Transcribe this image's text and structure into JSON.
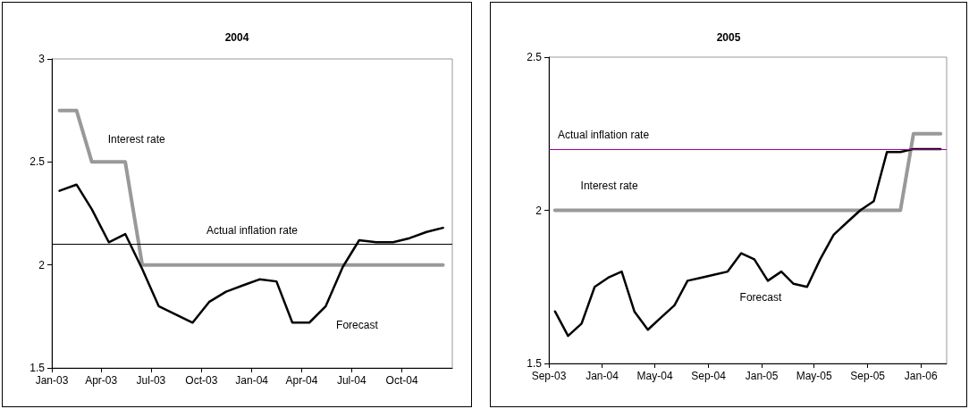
{
  "chart_data": [
    {
      "type": "line",
      "title": "2004",
      "x": [
        "2003-01-15",
        "2003-02-15",
        "2003-03-15",
        "2003-04-15",
        "2003-05-15",
        "2003-06-15",
        "2003-07-15",
        "2003-08-15",
        "2003-09-15",
        "2003-10-15",
        "2003-11-15",
        "2003-12-15",
        "2004-01-15",
        "2004-02-15",
        "2004-03-15",
        "2004-04-15",
        "2004-05-15",
        "2004-06-15",
        "2004-07-15",
        "2004-08-15",
        "2004-09-15",
        "2004-10-15",
        "2004-11-15",
        "2004-12-15"
      ],
      "series": [
        {
          "name": "Interest rate",
          "color": "#999999",
          "values": [
            2.75,
            2.75,
            2.5,
            2.5,
            2.5,
            2,
            2,
            2,
            2,
            2,
            2,
            2,
            2,
            2,
            2,
            2,
            2,
            2,
            2,
            2,
            2,
            2,
            2,
            2
          ]
        },
        {
          "name": "Forecast",
          "color": "#000000",
          "values": [
            2.36,
            2.39,
            2.27,
            2.11,
            2.15,
            1.98,
            1.8,
            1.76,
            1.72,
            1.82,
            1.87,
            1.9,
            1.93,
            1.92,
            1.72,
            1.72,
            1.8,
            1.99,
            2.12,
            2.11,
            2.11,
            2.13,
            2.16,
            2.18
          ]
        }
      ],
      "ref_lines": [
        {
          "axis": "y",
          "value": 2.1,
          "label": "Actual inflation rate",
          "color": "#000000"
        }
      ],
      "xlim": [
        "2003-01",
        "2005-01"
      ],
      "xticks": [
        {
          "value": "2003-01",
          "label": "Jan-03"
        },
        {
          "value": "2003-04",
          "label": "Apr-03"
        },
        {
          "value": "2003-07",
          "label": "Jul-03"
        },
        {
          "value": "2003-10",
          "label": "Oct-03"
        },
        {
          "value": "2004-01",
          "label": "Jan-04"
        },
        {
          "value": "2004-04",
          "label": "Apr-04"
        },
        {
          "value": "2004-07",
          "label": "Jul-04"
        },
        {
          "value": "2004-10",
          "label": "Oct-04"
        }
      ],
      "ylim": [
        1.5,
        3
      ],
      "yticks": [
        1.5,
        2,
        2.5,
        3
      ],
      "grid": false,
      "legend": false,
      "marker": "none",
      "line_style": "solid"
    },
    {
      "type": "line",
      "title": "2005",
      "x": [
        "2003-09-15",
        "2003-10-15",
        "2003-11-15",
        "2003-12-15",
        "2004-01-15",
        "2004-02-15",
        "2004-03-15",
        "2004-04-15",
        "2004-05-15",
        "2004-06-15",
        "2004-07-15",
        "2004-08-15",
        "2004-09-15",
        "2004-10-15",
        "2004-11-15",
        "2004-12-15",
        "2005-01-15",
        "2005-02-15",
        "2005-03-15",
        "2005-04-15",
        "2005-05-15",
        "2005-06-15",
        "2005-07-15",
        "2005-08-15",
        "2005-09-15",
        "2005-10-15",
        "2005-11-15",
        "2005-12-15",
        "2006-01-15",
        "2006-02-15"
      ],
      "series": [
        {
          "name": "Interest rate",
          "color": "#999999",
          "values": [
            2,
            2,
            2,
            2,
            2,
            2,
            2,
            2,
            2,
            2,
            2,
            2,
            2,
            2,
            2,
            2,
            2,
            2,
            2,
            2,
            2,
            2,
            2,
            2,
            2,
            2,
            2,
            2.25,
            2.25,
            2.25
          ]
        },
        {
          "name": "Forecast",
          "color": "#000000",
          "values": [
            1.67,
            1.59,
            1.63,
            1.75,
            1.78,
            1.8,
            1.67,
            1.61,
            1.65,
            1.69,
            1.77,
            1.78,
            1.79,
            1.8,
            1.86,
            1.84,
            1.77,
            1.8,
            1.76,
            1.75,
            1.84,
            1.92,
            1.96,
            2,
            2.03,
            2.19,
            2.19,
            2.2,
            2.2,
            2.2
          ]
        }
      ],
      "ref_lines": [
        {
          "axis": "y",
          "value": 2.2,
          "label": "Actual inflation rate",
          "color": "#990099"
        }
      ],
      "xlim": [
        "2003-09",
        "2006-03"
      ],
      "xticks": [
        {
          "value": "2003-09",
          "label": "Sep-03"
        },
        {
          "value": "2004-01",
          "label": "Jan-04"
        },
        {
          "value": "2004-05",
          "label": "May-04"
        },
        {
          "value": "2004-09",
          "label": "Sep-04"
        },
        {
          "value": "2005-01",
          "label": "Jan-05"
        },
        {
          "value": "2005-05",
          "label": "May-05"
        },
        {
          "value": "2005-09",
          "label": "Sep-05"
        },
        {
          "value": "2006-01",
          "label": "Jan-06"
        }
      ],
      "ylim": [
        1.5,
        2.5
      ],
      "yticks": [
        1.5,
        2,
        2.5
      ],
      "grid": false,
      "legend": false,
      "marker": "none",
      "line_style": "solid"
    }
  ]
}
